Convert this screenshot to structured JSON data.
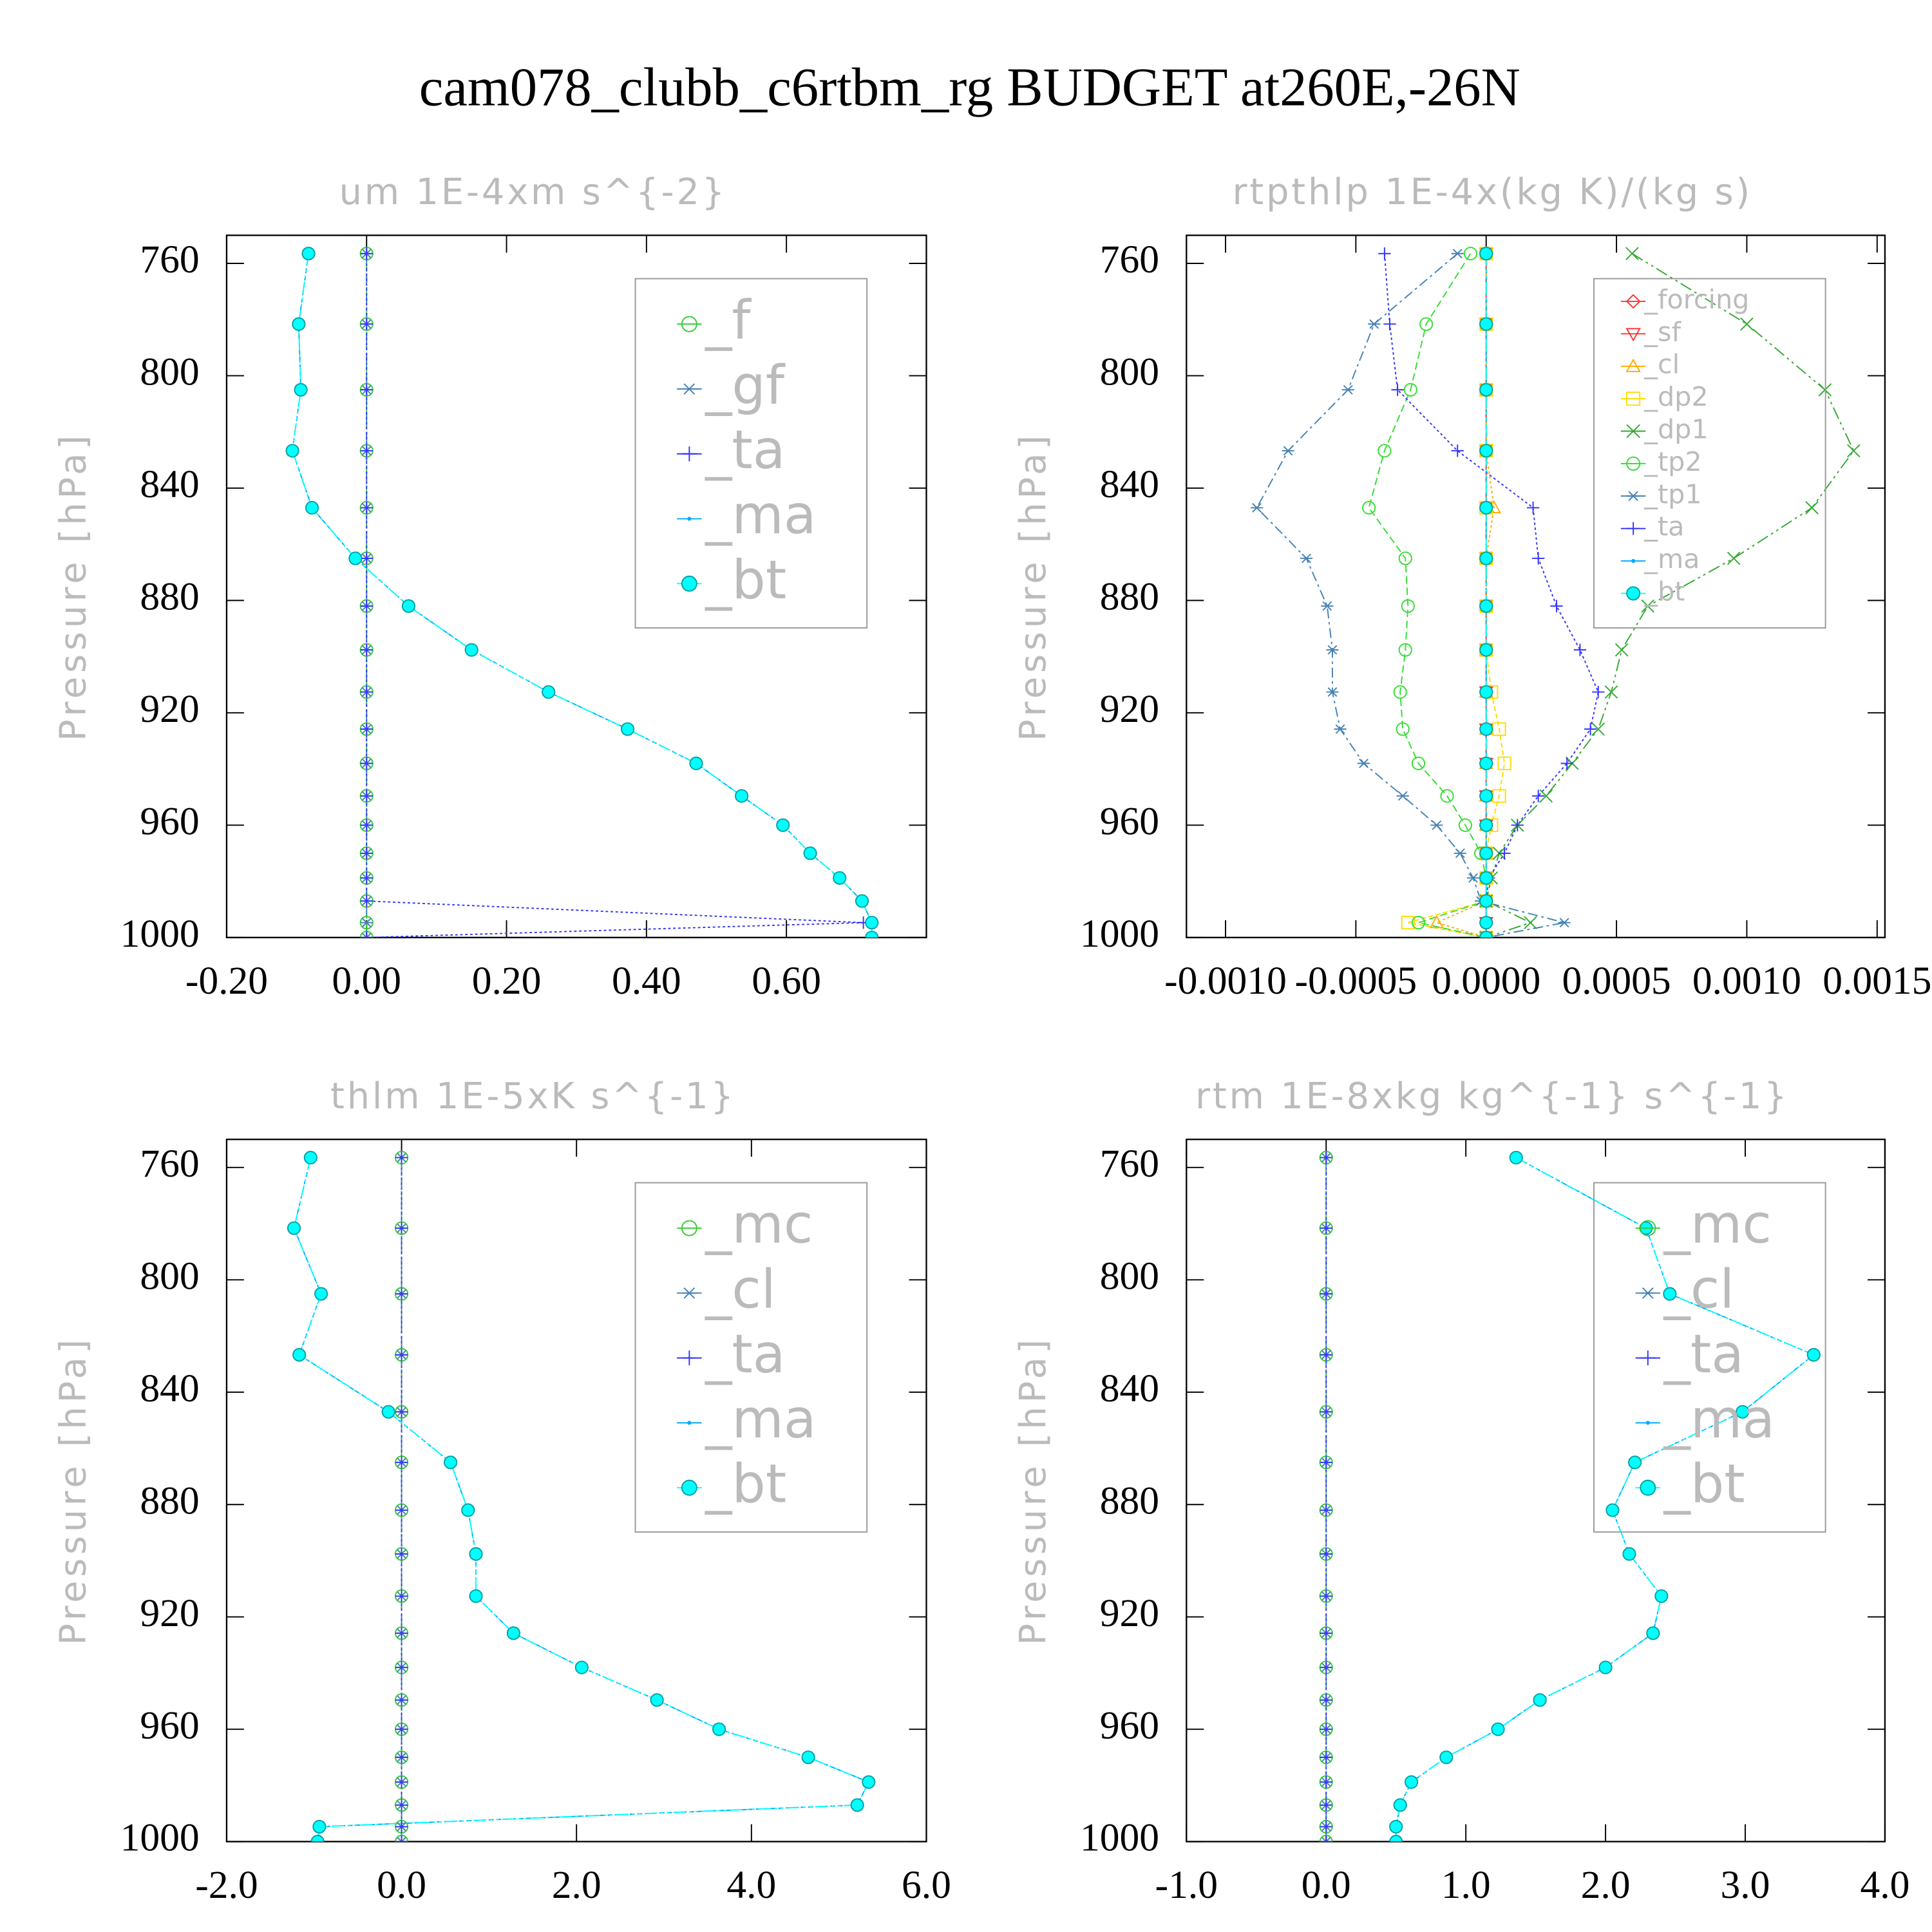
{
  "title": "cam078_clubb_c6rtbm_rg  BUDGET at260E,-26N",
  "chart_data": [
    {
      "type": "line",
      "title": "um  1E-4xm s^{-2}",
      "y_label": "Pressure [hPa]",
      "y": [
        756.5,
        781.6,
        805,
        826.7,
        847,
        865,
        882,
        897.6,
        912.6,
        925.8,
        938,
        949.6,
        960,
        970,
        978.8,
        987,
        994.7,
        1000
      ],
      "ylim": [
        1000,
        750
      ],
      "yticks": [
        760,
        800,
        840,
        880,
        920,
        960,
        1000
      ],
      "xlim": [
        -0.2,
        0.8
      ],
      "xticks": [
        {
          "value": -0.2,
          "label": "-0.20"
        },
        {
          "value": 0,
          "label": "0.00"
        },
        {
          "value": 0.2,
          "label": "0.20"
        },
        {
          "value": 0.4,
          "label": "0.40"
        },
        {
          "value": 0.6,
          "label": "0.60"
        }
      ],
      "legend": "upper right",
      "series": [
        {
          "name": "_f",
          "color": "#33cc33",
          "marker": "circle",
          "values": [
            0,
            0,
            0,
            0,
            0,
            0,
            0,
            0,
            0,
            0,
            0,
            0,
            0,
            0,
            0,
            0,
            0,
            0
          ]
        },
        {
          "name": "_gf",
          "color": "#4682b4",
          "marker": "asterisk",
          "values": [
            0,
            0,
            0,
            0,
            0,
            0,
            0,
            0,
            0,
            0,
            0,
            0,
            0,
            0,
            0,
            0,
            0,
            0
          ]
        },
        {
          "name": "_ta",
          "color": "#3333ff",
          "marker": "plus",
          "values": [
            0,
            0,
            0,
            0,
            0,
            0,
            0,
            0,
            0,
            0,
            0,
            0,
            0,
            0,
            0,
            0,
            0.71,
            0
          ]
        },
        {
          "name": "_ma",
          "color": "#00aaff",
          "marker": "dot",
          "values": [
            -0.083,
            -0.097,
            -0.094,
            -0.106,
            -0.078,
            -0.016,
            0.06,
            0.15,
            0.26,
            0.373,
            0.471,
            0.536,
            0.595,
            0.634,
            0.676,
            0.708,
            0.722,
            0.722
          ]
        },
        {
          "name": "_bt",
          "color": "#00ffff",
          "marker": "filled-circle",
          "values": [
            -0.083,
            -0.097,
            -0.094,
            -0.106,
            -0.078,
            -0.016,
            0.06,
            0.15,
            0.26,
            0.373,
            0.471,
            0.536,
            0.595,
            0.634,
            0.676,
            0.708,
            0.722,
            0.722
          ]
        }
      ]
    },
    {
      "type": "line",
      "title": "rtpthlp  1E-4x(kg K)/(kg s)",
      "y_label": "Pressure [hPa]",
      "y": [
        756.5,
        781.6,
        805,
        826.7,
        847,
        865,
        882,
        897.6,
        912.6,
        925.8,
        938,
        949.6,
        960,
        970,
        978.8,
        987,
        994.7,
        1000
      ],
      "ylim": [
        1000,
        750
      ],
      "yticks": [
        760,
        800,
        840,
        880,
        920,
        960,
        1000
      ],
      "xlim": [
        -0.00115,
        0.00153
      ],
      "xticks": [
        {
          "value": -0.001,
          "label": "-0.0010"
        },
        {
          "value": -0.0005,
          "label": "-0.0005"
        },
        {
          "value": 0,
          "label": "0.0000"
        },
        {
          "value": 0.0005,
          "label": "0.0005"
        },
        {
          "value": 0.001,
          "label": "0.0010"
        },
        {
          "value": 0.0015,
          "label": "0.0015"
        }
      ],
      "legend": "upper right",
      "series": [
        {
          "name": "_forcing",
          "color": "#ff3333",
          "marker": "diamond",
          "values": [
            0,
            0,
            0,
            0,
            0,
            0,
            0,
            0,
            0,
            0,
            0,
            0,
            0,
            0,
            0,
            0,
            0,
            0
          ]
        },
        {
          "name": "_sf",
          "color": "#ff3333",
          "marker": "triangle-down",
          "values": [
            0,
            0,
            0,
            0,
            0,
            0,
            0,
            0,
            0,
            0,
            0,
            0,
            0,
            0,
            0,
            0,
            0,
            0
          ]
        },
        {
          "name": "_cl",
          "color": "#ffaa00",
          "marker": "triangle",
          "values": [
            0,
            0,
            0,
            0,
            3e-05,
            0,
            0,
            0,
            0,
            0,
            0,
            0,
            0,
            0,
            0,
            0,
            -0.00019,
            0
          ]
        },
        {
          "name": "_dp2",
          "color": "#ffdd00",
          "marker": "square",
          "values": [
            0,
            0,
            0,
            0,
            0,
            0,
            0,
            0,
            2e-05,
            5e-05,
            7e-05,
            5e-05,
            2e-05,
            0,
            0,
            0,
            -0.0003,
            0
          ]
        },
        {
          "name": "_dp1",
          "color": "#33aa33",
          "marker": "x",
          "values": [
            0.00056,
            0.001,
            0.0013,
            0.00141,
            0.00125,
            0.00095,
            0.00062,
            0.00052,
            0.00048,
            0.00043,
            0.00033,
            0.00023,
            0.00012,
            5e-05,
            2e-05,
            0,
            0.00017,
            0
          ]
        },
        {
          "name": "_tp2",
          "color": "#33dd33",
          "marker": "circle",
          "values": [
            -6e-05,
            -0.00023,
            -0.00029,
            -0.00039,
            -0.00045,
            -0.00031,
            -0.0003,
            -0.00031,
            -0.00033,
            -0.00032,
            -0.00026,
            -0.00015,
            -8e-05,
            -2e-05,
            0,
            0,
            -0.00026,
            0
          ]
        },
        {
          "name": "_tp1",
          "color": "#4682b4",
          "marker": "asterisk",
          "values": [
            -0.00011,
            -0.00043,
            -0.00053,
            -0.00076,
            -0.00088,
            -0.00069,
            -0.00061,
            -0.00059,
            -0.00059,
            -0.00056,
            -0.00047,
            -0.00032,
            -0.00019,
            -0.0001,
            -5e-05,
            -2e-05,
            0.0003,
            0
          ]
        },
        {
          "name": "_ta",
          "color": "#3333ff",
          "marker": "plus",
          "values": [
            -0.00039,
            -0.00037,
            -0.00034,
            -0.00011,
            0.00018,
            0.0002,
            0.00027,
            0.00036,
            0.00043,
            0.0004,
            0.00031,
            0.0002,
            0.00012,
            7e-05,
            1e-05,
            0,
            0,
            0
          ]
        },
        {
          "name": "_ma",
          "color": "#00aaff",
          "marker": "dot",
          "values": [
            0,
            0,
            0,
            0,
            0,
            0,
            0,
            0,
            0,
            0,
            0,
            0,
            0,
            0,
            0,
            0,
            0,
            0
          ]
        },
        {
          "name": "_bt",
          "color": "#00ffff",
          "marker": "filled-circle",
          "values": [
            0,
            0,
            0,
            0,
            0,
            0,
            0,
            0,
            0,
            0,
            0,
            0,
            0,
            0,
            0,
            0,
            0,
            0
          ]
        }
      ]
    },
    {
      "type": "line",
      "title": "thlm  1E-5xK s^{-1}",
      "y_label": "Pressure [hPa]",
      "y": [
        756.5,
        781.6,
        805,
        826.7,
        847,
        865,
        882,
        897.6,
        912.6,
        925.8,
        938,
        949.6,
        960,
        970,
        978.8,
        987,
        994.7,
        1000
      ],
      "ylim": [
        1000,
        750
      ],
      "yticks": [
        760,
        800,
        840,
        880,
        920,
        960,
        1000
      ],
      "xlim": [
        -2,
        6
      ],
      "xticks": [
        {
          "value": -2,
          "label": "-2.0"
        },
        {
          "value": 0,
          "label": "0.0"
        },
        {
          "value": 2,
          "label": "2.0"
        },
        {
          "value": 4,
          "label": "4.0"
        },
        {
          "value": 6,
          "label": "6.0"
        }
      ],
      "legend": "upper right",
      "series": [
        {
          "name": "_mc",
          "color": "#33cc33",
          "marker": "circle",
          "values": [
            0,
            0,
            0,
            0,
            0,
            0,
            0,
            0,
            0,
            0,
            0,
            0,
            0,
            0,
            0,
            0,
            0,
            0
          ]
        },
        {
          "name": "_cl",
          "color": "#4682b4",
          "marker": "asterisk",
          "values": [
            0,
            0,
            0,
            0,
            0,
            0,
            0,
            0,
            0,
            0,
            0,
            0,
            0,
            0,
            0,
            0,
            0,
            0
          ]
        },
        {
          "name": "_ta",
          "color": "#3333ff",
          "marker": "plus",
          "values": [
            0,
            0,
            0,
            0,
            0,
            0,
            0,
            0,
            0,
            0,
            0,
            0,
            0,
            0,
            0,
            0,
            0,
            0
          ]
        },
        {
          "name": "_ma",
          "color": "#00aaff",
          "marker": "dot",
          "values": [
            -1.04,
            -1.23,
            -0.92,
            -1.17,
            -0.15,
            0.56,
            0.76,
            0.85,
            0.85,
            1.28,
            2.06,
            2.92,
            3.63,
            4.65,
            5.34,
            5.21,
            -0.94,
            -0.96
          ]
        },
        {
          "name": "_bt",
          "color": "#00ffff",
          "marker": "filled-circle",
          "values": [
            -1.04,
            -1.23,
            -0.92,
            -1.17,
            -0.15,
            0.56,
            0.76,
            0.85,
            0.85,
            1.28,
            2.06,
            2.92,
            3.63,
            4.65,
            5.34,
            5.21,
            -0.94,
            -0.96
          ]
        }
      ]
    },
    {
      "type": "line",
      "title": "rtm  1E-8xkg kg^{-1} s^{-1}",
      "y_label": "Pressure [hPa]",
      "y": [
        756.5,
        781.6,
        805,
        826.7,
        847,
        865,
        882,
        897.6,
        912.6,
        925.8,
        938,
        949.6,
        960,
        970,
        978.8,
        987,
        994.7,
        1000
      ],
      "ylim": [
        1000,
        750
      ],
      "yticks": [
        760,
        800,
        840,
        880,
        920,
        960,
        1000
      ],
      "xlim": [
        -1,
        4
      ],
      "xticks": [
        {
          "value": -1,
          "label": "-1.0"
        },
        {
          "value": 0,
          "label": "0.0"
        },
        {
          "value": 1,
          "label": "1.0"
        },
        {
          "value": 2,
          "label": "2.0"
        },
        {
          "value": 3,
          "label": "3.0"
        },
        {
          "value": 4,
          "label": "4.0"
        }
      ],
      "legend": "upper right",
      "series": [
        {
          "name": "_mc",
          "color": "#33cc33",
          "marker": "circle",
          "values": [
            0,
            0,
            0,
            0,
            0,
            0,
            0,
            0,
            0,
            0,
            0,
            0,
            0,
            0,
            0,
            0,
            0,
            0
          ]
        },
        {
          "name": "_cl",
          "color": "#4682b4",
          "marker": "asterisk",
          "values": [
            0,
            0,
            0,
            0,
            0,
            0,
            0,
            0,
            0,
            0,
            0,
            0,
            0,
            0,
            0,
            0,
            0,
            0
          ]
        },
        {
          "name": "_ta",
          "color": "#3333ff",
          "marker": "plus",
          "values": [
            0,
            0,
            0,
            0,
            0,
            0,
            0,
            0,
            0,
            0,
            0,
            0,
            0,
            0,
            0,
            0,
            0,
            0
          ]
        },
        {
          "name": "_ma",
          "color": "#00aaff",
          "marker": "dot",
          "values": [
            1.36,
            2.29,
            2.46,
            3.49,
            2.98,
            2.21,
            2.05,
            2.17,
            2.4,
            2.34,
            2.0,
            1.53,
            1.23,
            0.86,
            0.61,
            0.53,
            0.5,
            0.5
          ]
        },
        {
          "name": "_bt",
          "color": "#00ffff",
          "marker": "filled-circle",
          "values": [
            1.36,
            2.29,
            2.46,
            3.49,
            2.98,
            2.21,
            2.05,
            2.17,
            2.4,
            2.34,
            2.0,
            1.53,
            1.23,
            0.86,
            0.61,
            0.53,
            0.5,
            0.5
          ]
        }
      ]
    }
  ]
}
